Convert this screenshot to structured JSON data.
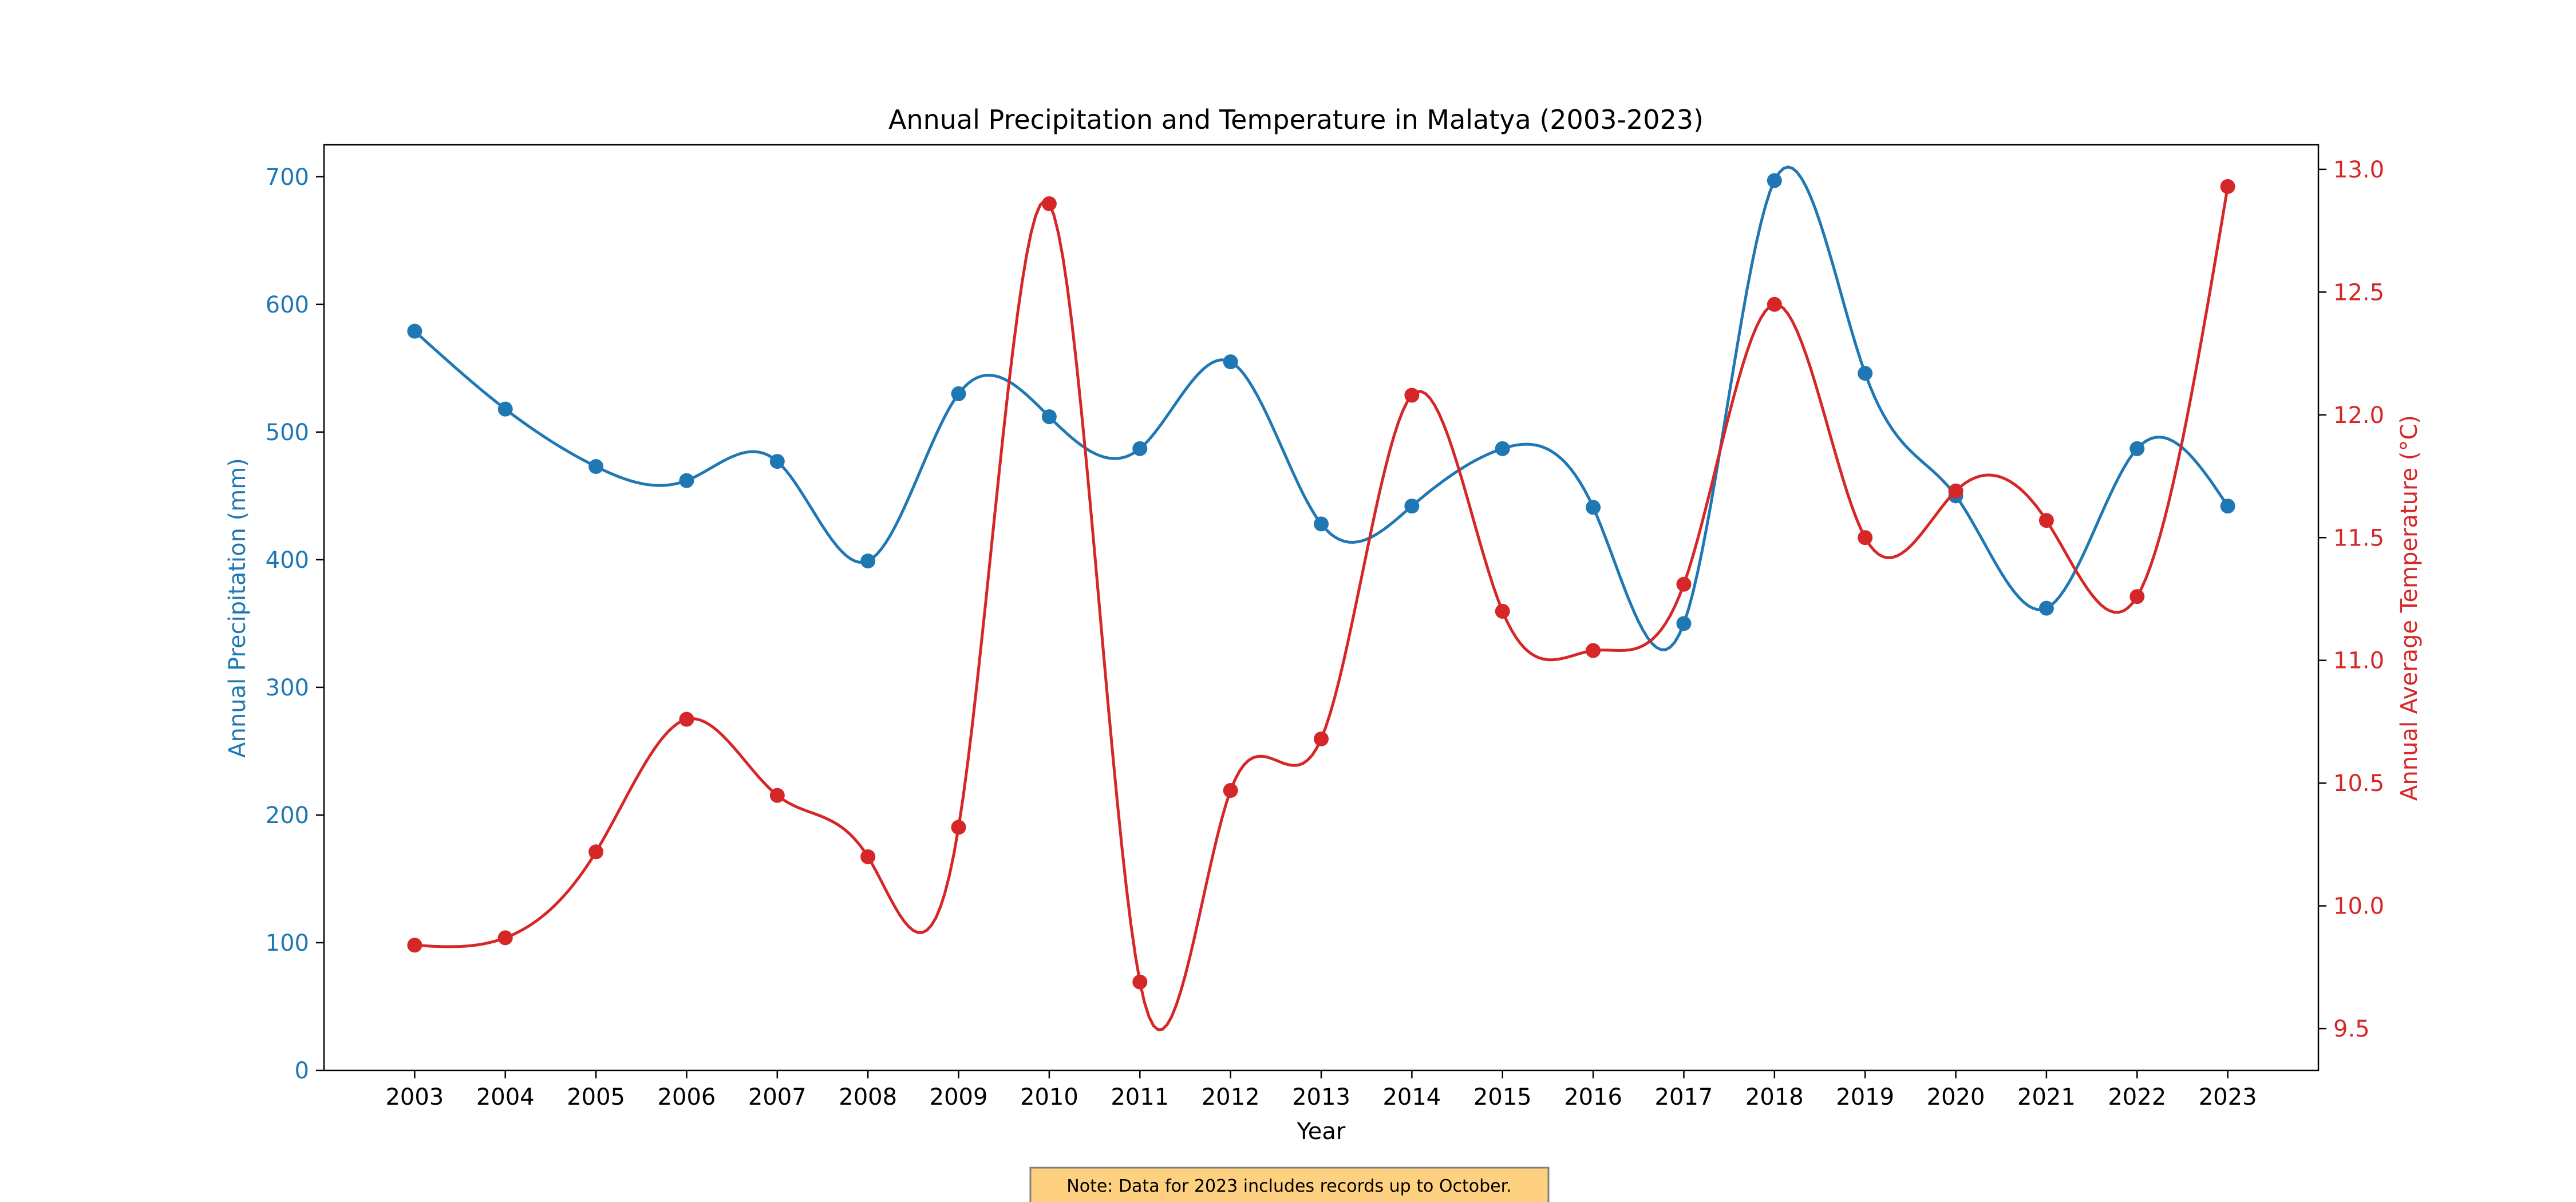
{
  "chart_data": {
    "type": "line",
    "title": "Annual Precipitation and Temperature in Malatya (2003-2023)",
    "xlabel": "Year",
    "ylabel_left": "Annual Precipitation (mm)",
    "ylabel_right": "Annual Average Temperature (°C)",
    "x": [
      2003,
      2004,
      2005,
      2006,
      2007,
      2008,
      2009,
      2010,
      2011,
      2012,
      2013,
      2014,
      2015,
      2016,
      2017,
      2018,
      2019,
      2020,
      2021,
      2022,
      2023
    ],
    "x_tick_labels": [
      "2003",
      "2004",
      "2005",
      "2006",
      "2007",
      "2008",
      "2009",
      "2010",
      "2011",
      "2012",
      "2013",
      "2014",
      "2015",
      "2016",
      "2017",
      "2018",
      "2019",
      "2020",
      "2021",
      "2022",
      "2023"
    ],
    "ylim_left": [
      0,
      725
    ],
    "ylim_right": [
      9.33,
      13.1
    ],
    "yticks_left": [
      0,
      100,
      200,
      300,
      400,
      500,
      600,
      700
    ],
    "yticks_left_labels": [
      "0",
      "100",
      "200",
      "300",
      "400",
      "500",
      "600",
      "700"
    ],
    "yticks_right": [
      9.5,
      10.0,
      10.5,
      11.0,
      11.5,
      12.0,
      12.5,
      13.0
    ],
    "yticks_right_labels": [
      "9.5",
      "10.0",
      "10.5",
      "11.0",
      "11.5",
      "12.0",
      "12.5",
      "13.0"
    ],
    "grid": false,
    "series": [
      {
        "axis": "left",
        "color": "#1f77b4",
        "smooth": true,
        "marker": "circle",
        "values": [
          579,
          518,
          473,
          462,
          477,
          399,
          530,
          512,
          487,
          555,
          428,
          442,
          487,
          441,
          350,
          697,
          546,
          450,
          362,
          487,
          442
        ]
      },
      {
        "axis": "right",
        "color": "#d62728",
        "smooth": true,
        "marker": "circle",
        "values": [
          9.84,
          9.87,
          10.22,
          10.76,
          10.45,
          10.2,
          10.32,
          12.86,
          9.69,
          10.47,
          10.68,
          12.08,
          11.2,
          11.04,
          11.31,
          12.45,
          11.5,
          11.69,
          11.57,
          11.26,
          12.93
        ]
      }
    ],
    "annotation": {
      "text": "Note: Data for 2023 includes records up to October.",
      "background": "#fdd17f",
      "border": "#7f7f7f"
    }
  }
}
